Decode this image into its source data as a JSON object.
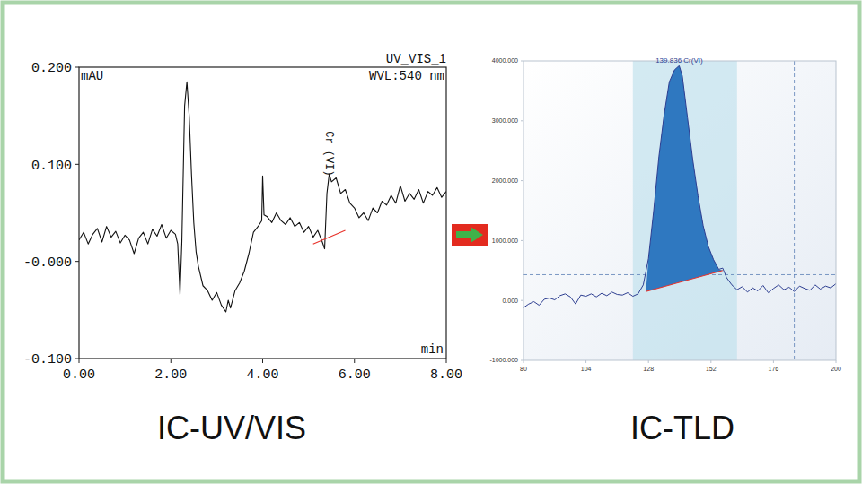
{
  "chart_data": [
    {
      "type": "line",
      "title": "IC-UV/VIS",
      "channel": "UV_VIS_1",
      "wavelength": "WVL:540 nm",
      "x_label": "min",
      "y_label": "mAU",
      "color": "#111111",
      "grid": false,
      "xlim": [
        0,
        8
      ],
      "ylim": [
        -0.1,
        0.2
      ],
      "xticks": [
        {
          "value": 0,
          "label": "0.00"
        },
        {
          "value": 2,
          "label": "2.00"
        },
        {
          "value": 4,
          "label": "4.00"
        },
        {
          "value": 6,
          "label": "6.00"
        },
        {
          "value": 8,
          "label": "8.00"
        }
      ],
      "yticks": [
        {
          "value": -0.1,
          "label": "-0.100"
        },
        {
          "value": 0,
          "label": "-0.000"
        },
        {
          "value": 0.1,
          "label": "0.100"
        },
        {
          "value": 0.2,
          "label": "0.200"
        }
      ],
      "x": [
        0.0,
        0.1,
        0.2,
        0.3,
        0.4,
        0.5,
        0.6,
        0.7,
        0.8,
        0.9,
        1.0,
        1.1,
        1.2,
        1.3,
        1.4,
        1.5,
        1.6,
        1.7,
        1.8,
        1.9,
        2.0,
        2.1,
        2.15,
        2.2,
        2.24,
        2.3,
        2.35,
        2.4,
        2.45,
        2.5,
        2.55,
        2.6,
        2.7,
        2.8,
        2.9,
        3.0,
        3.1,
        3.2,
        3.25,
        3.3,
        3.4,
        3.5,
        3.6,
        3.7,
        3.8,
        3.9,
        3.98,
        4.0,
        4.03,
        4.1,
        4.2,
        4.3,
        4.4,
        4.5,
        4.6,
        4.7,
        4.8,
        4.9,
        5.0,
        5.1,
        5.2,
        5.3,
        5.35,
        5.4,
        5.45,
        5.5,
        5.6,
        5.7,
        5.8,
        5.9,
        6.0,
        6.1,
        6.2,
        6.3,
        6.4,
        6.5,
        6.6,
        6.7,
        6.8,
        6.9,
        7.0,
        7.1,
        7.2,
        7.3,
        7.4,
        7.5,
        7.6,
        7.7,
        7.8,
        7.9,
        8.0
      ],
      "values": [
        0.022,
        0.03,
        0.018,
        0.028,
        0.034,
        0.02,
        0.036,
        0.025,
        0.031,
        0.019,
        0.027,
        0.022,
        0.008,
        0.024,
        0.03,
        0.018,
        0.033,
        0.026,
        0.038,
        0.024,
        0.032,
        0.028,
        0.018,
        -0.034,
        0.02,
        0.16,
        0.185,
        0.15,
        0.09,
        0.04,
        0.01,
        -0.005,
        -0.025,
        -0.03,
        -0.04,
        -0.032,
        -0.045,
        -0.052,
        -0.04,
        -0.048,
        -0.03,
        -0.022,
        -0.01,
        0.008,
        0.03,
        0.036,
        0.042,
        0.088,
        0.048,
        0.046,
        0.04,
        0.05,
        0.042,
        0.038,
        0.045,
        0.036,
        0.04,
        0.03,
        0.036,
        0.025,
        0.032,
        0.02,
        0.013,
        0.07,
        0.09,
        0.082,
        0.086,
        0.07,
        0.074,
        0.06,
        0.055,
        0.045,
        0.05,
        0.042,
        0.055,
        0.05,
        0.062,
        0.058,
        0.068,
        0.06,
        0.078,
        0.062,
        0.07,
        0.064,
        0.074,
        0.06,
        0.072,
        0.068,
        0.076,
        0.066,
        0.072
      ],
      "baseline": {
        "x": [
          5.1,
          5.8
        ],
        "y": [
          0.018,
          0.032
        ]
      },
      "peak_label": {
        "text": "Cr (VI)",
        "x": 5.45,
        "y": 0.09
      }
    },
    {
      "type": "line",
      "title": "IC-TLD",
      "color": "#2d3e91",
      "grid": false,
      "xlim": [
        80,
        200
      ],
      "ylim": [
        -1000,
        4000
      ],
      "xticks": [
        80,
        104,
        128,
        152,
        176,
        200
      ],
      "yticks": [
        {
          "value": -1000,
          "label": "-1000.000"
        },
        {
          "value": 0,
          "label": "0.000"
        },
        {
          "value": 1000,
          "label": "1000.000"
        },
        {
          "value": 2000,
          "label": "2000.000"
        },
        {
          "value": 3000,
          "label": "3000.000"
        },
        {
          "value": 4000,
          "label": "4000.000"
        }
      ],
      "x": [
        80,
        82,
        84,
        86,
        88,
        90,
        92,
        94,
        96,
        98,
        100,
        102,
        104,
        106,
        108,
        110,
        112,
        114,
        116,
        118,
        120,
        122,
        124,
        126,
        128,
        130,
        132,
        134,
        136,
        138,
        139.8,
        141,
        143,
        145,
        147,
        149,
        151,
        153,
        155,
        156.5,
        158,
        160,
        162,
        164,
        166,
        168,
        170,
        172,
        174,
        176,
        178,
        180,
        182,
        184,
        186,
        188,
        190,
        192,
        194,
        196,
        198,
        200
      ],
      "values": [
        -120,
        -60,
        -20,
        -80,
        20,
        40,
        10,
        80,
        110,
        60,
        -60,
        90,
        70,
        110,
        60,
        120,
        80,
        140,
        100,
        90,
        130,
        70,
        110,
        260,
        700,
        1500,
        2400,
        3100,
        3650,
        3850,
        3920,
        3750,
        3050,
        2350,
        1750,
        1250,
        900,
        680,
        520,
        540,
        380,
        260,
        180,
        230,
        140,
        210,
        160,
        250,
        130,
        200,
        260,
        180,
        220,
        150,
        240,
        200,
        170,
        260,
        190,
        240,
        210,
        280
      ],
      "baseline": {
        "x": [
          127,
          156.5
        ],
        "y": [
          150,
          500
        ]
      },
      "window": [
        122,
        162
      ],
      "reference_lines": {
        "x": 184,
        "y": 430
      },
      "peak_label": {
        "text": "139.836 Cr(VI)",
        "x": 139.8,
        "y": 3920
      }
    }
  ]
}
